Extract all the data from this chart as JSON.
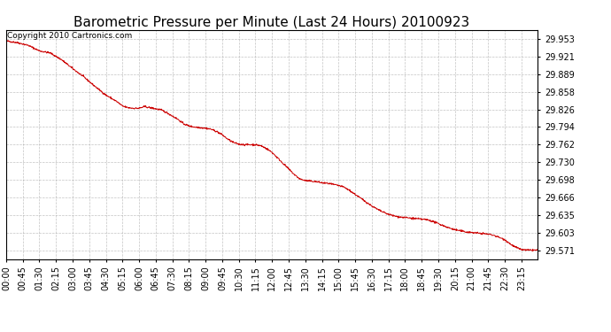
{
  "title": "Barometric Pressure per Minute (Last 24 Hours) 20100923",
  "copyright": "Copyright 2010 Cartronics.com",
  "line_color": "#cc0000",
  "background_color": "#ffffff",
  "grid_color": "#aaaaaa",
  "y_ticks": [
    29.953,
    29.921,
    29.889,
    29.858,
    29.826,
    29.794,
    29.762,
    29.73,
    29.698,
    29.666,
    29.635,
    29.603,
    29.571
  ],
  "y_min": 29.555,
  "y_max": 29.97,
  "x_labels": [
    "00:00",
    "00:45",
    "01:30",
    "02:15",
    "03:00",
    "03:45",
    "04:30",
    "05:15",
    "06:00",
    "06:45",
    "07:30",
    "08:15",
    "09:00",
    "09:45",
    "10:30",
    "11:15",
    "12:00",
    "12:45",
    "13:30",
    "14:15",
    "15:00",
    "15:45",
    "16:30",
    "17:15",
    "18:00",
    "18:45",
    "19:30",
    "20:15",
    "21:00",
    "21:45",
    "22:30",
    "23:15"
  ],
  "title_fontsize": 11,
  "tick_fontsize": 7,
  "copyright_fontsize": 6.5
}
